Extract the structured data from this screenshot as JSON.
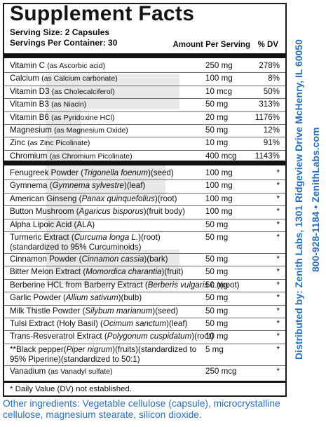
{
  "label": {
    "title": "Supplement Facts",
    "serving_size": "Serving Size: 2 Capsules",
    "servings_per_container": "Servings Per Container: 30",
    "col_amount": "Amount Per Serving",
    "col_dv": "% DV",
    "vitamins": [
      {
        "name": "Vitamin C",
        "source": "(as Ascorbic acid)",
        "amount": "250 mg",
        "dv": "278%"
      },
      {
        "name": "Calcium",
        "source": "(as Calcium carbonate)",
        "amount": "100 mg",
        "dv": "8%"
      },
      {
        "name": "Vitamin D3",
        "source": "(as Cholecalciferol)",
        "amount": "10 mcg",
        "dv": "50%"
      },
      {
        "name": "Vitamin B3",
        "source": "(as Niacin)",
        "amount": "50 mg",
        "dv": "313%"
      },
      {
        "name": "Vitamin B6",
        "source": "(as Pyridoxine HCl)",
        "amount": "20 mg",
        "dv": "1176%"
      },
      {
        "name": "Magnesium",
        "source": "(as Magnesium Oxide)",
        "amount": "50 mg",
        "dv": "12%"
      },
      {
        "name": "Zinc",
        "source": "(as Zinc Picolinate)",
        "amount": "10 mg",
        "dv": "91%"
      },
      {
        "name": "Chromium",
        "source": "(as Chromium Picolinate)",
        "amount": "400 mcg",
        "dv": "1143%"
      }
    ],
    "herbs": [
      {
        "pre": "Fenugreek Powder (",
        "latin": "Trigonella foenum",
        "post": ")(seed)",
        "amount": "100 mg",
        "dv": "*"
      },
      {
        "pre": "Gymnema (",
        "latin": "Gymnema sylvestre",
        "post": ")(leaf)",
        "amount": "100 mg",
        "dv": "*"
      },
      {
        "pre": "American Ginseng (",
        "latin": "Panax quinquefolius",
        "post": ")(root)",
        "amount": "100 mg",
        "dv": "*"
      },
      {
        "pre": "Button Mushroom (",
        "latin": "Agaricus bisporus",
        "post": ")(fruit body)",
        "amount": "100 mg",
        "dv": "*"
      },
      {
        "pre": "Alpha Lipoic Acid (ALA)",
        "latin": "",
        "post": "",
        "amount": "50 mg",
        "dv": "*"
      },
      {
        "pre": "Turmeric Extract (",
        "latin": "Curcuma longa L.",
        "post": ")(root)",
        "line2": "(standardized to 95% Curcuminoids)",
        "amount": "50 mg",
        "dv": "*"
      },
      {
        "pre": "Cinnamon Powder (",
        "latin": "Cinnamon cassia",
        "post": ")(bark)",
        "amount": "50 mg",
        "dv": "*"
      },
      {
        "pre": "Bitter Melon Extract (",
        "latin": "Momordica charantia",
        "post": ")(fruit)",
        "amount": "50 mg",
        "dv": "*"
      },
      {
        "pre": "Berberine HCL from Barberry Extract (",
        "latin": "Berberis vulgaris L.",
        "post": ")(root)",
        "amount": "50 mg",
        "dv": "*"
      },
      {
        "pre": "Garlic Powder (",
        "latin": "Allium sativum",
        "post": ")(bulb)",
        "amount": "50 mg",
        "dv": "*"
      },
      {
        "pre": "Milk Thistle Powder (",
        "latin": "Silybum marianum",
        "post": ")(seed)",
        "amount": "50 mg",
        "dv": "*"
      },
      {
        "pre": "Tulsi Extract (Holy Basil) (",
        "latin": "Ocimum sanctum",
        "post": ")(leaf)",
        "amount": "50 mg",
        "dv": "*"
      },
      {
        "pre": "Trans-Resveratrol Extract (",
        "latin": "Polygonum cuspidatum",
        "post": ")(root)",
        "amount": "10 mg",
        "dv": "*"
      },
      {
        "pre": "**Black pepper(",
        "latin": "Piper nigrum",
        "post": ")(fruits)(standardized to",
        "line2": "95% Piperine)(standardized to 50:1)",
        "amount": "5 mg",
        "dv": "*"
      },
      {
        "pre": "Vanadium ",
        "sub": "(as Vanadyl sulfate)",
        "latin": "",
        "post": "",
        "amount": "250 mcg",
        "dv": "*"
      }
    ],
    "footnote": "* Daily Value (DV) not established."
  },
  "other_ingredients": "Other ingredients: Vegetable cellulose (capsule), microcrystalline cellulose, magnesium stearate, silicon dioxide.",
  "distributor": "Distributed by: Zenith Labs, 1301 Ridgeview Drive McHenry, IL 60050",
  "distributor_contact": "800-928-1184 • ZenithLabs.com",
  "colors": {
    "text": "#0d0d0d",
    "accent_blue": "#2b6fb5",
    "rule": "#111111"
  }
}
